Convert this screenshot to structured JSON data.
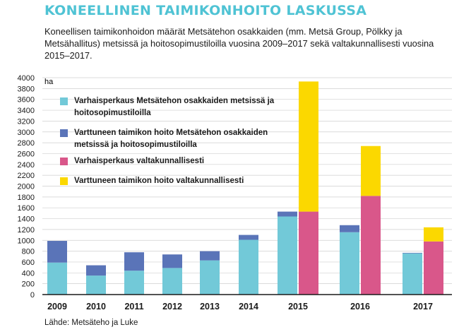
{
  "header": {
    "title": "KONEELLINEN TAIMIKONHOITO LASKUSSA",
    "subtitle": "Koneellisen taimikonhoidon määrät Metsätehon osakkaiden (mm. Metsä Group, Pölkky ja Metsähallitus) metsissä ja hoitosopimustiloilla vuosina 2009–2017 sekä valtakunnallisesti vuosina 2015–2017."
  },
  "source": "Lähde: Metsäteho ja Luke",
  "colors": {
    "varhais_metsateho": "#72c9d8",
    "varttuneen_metsateho": "#5a74b8",
    "varhais_valtakunnallinen": "#d9578a",
    "varttuneen_valtakunnallinen": "#fbd800",
    "grid": "#cfcfcf",
    "axis": "#1a1a1a"
  },
  "legend": [
    {
      "label": "Varhaisperkaus Metsätehon osakkaiden metsissä ja hoitosopimustiloilla",
      "color": "#72c9d8"
    },
    {
      "label": "Varttuneen taimikon hoito Metsätehon osakkaiden metsissä ja hoitosopimustiloilla",
      "color": "#5a74b8"
    },
    {
      "label": "Varhaisperkaus valtakunnallisesti",
      "color": "#d9578a"
    },
    {
      "label": "Varttuneen taimikon hoito valtakunnallisesti",
      "color": "#fbd800"
    }
  ],
  "chart_data": {
    "type": "bar",
    "stacked": true,
    "unit_label": "ha",
    "ylim": [
      0,
      4000
    ],
    "yticks": [
      0,
      200,
      400,
      600,
      800,
      1000,
      1200,
      1400,
      1600,
      1800,
      2000,
      2200,
      2400,
      2600,
      2800,
      3000,
      3200,
      3400,
      3600,
      3800,
      4000
    ],
    "grid": true,
    "legend_position": "top-left",
    "categories": [
      "2009",
      "2010",
      "2011",
      "2012",
      "2013",
      "2014",
      "2015",
      "2016",
      "2017"
    ],
    "groups": [
      {
        "name": "Metsäteho",
        "series": [
          {
            "name": "Varhaisperkaus Metsätehon osakkaiden metsissä ja hoitosopimustiloilla",
            "values": [
              590,
              350,
              440,
              490,
              630,
              1010,
              1440,
              1150,
              760
            ]
          },
          {
            "name": "Varttuneen taimikon hoito Metsätehon osakkaiden metsissä ja hoitosopimustiloilla",
            "values": [
              400,
              190,
              340,
              250,
              170,
              90,
              90,
              130,
              10
            ]
          }
        ]
      },
      {
        "name": "Valtakunnallinen",
        "series": [
          {
            "name": "Varhaisperkaus valtakunnallisesti",
            "values": [
              null,
              null,
              null,
              null,
              null,
              null,
              1530,
              1820,
              980
            ]
          },
          {
            "name": "Varttuneen taimikon hoito valtakunnallisesti",
            "values": [
              null,
              null,
              null,
              null,
              null,
              null,
              2400,
              920,
              260
            ]
          }
        ]
      }
    ]
  }
}
